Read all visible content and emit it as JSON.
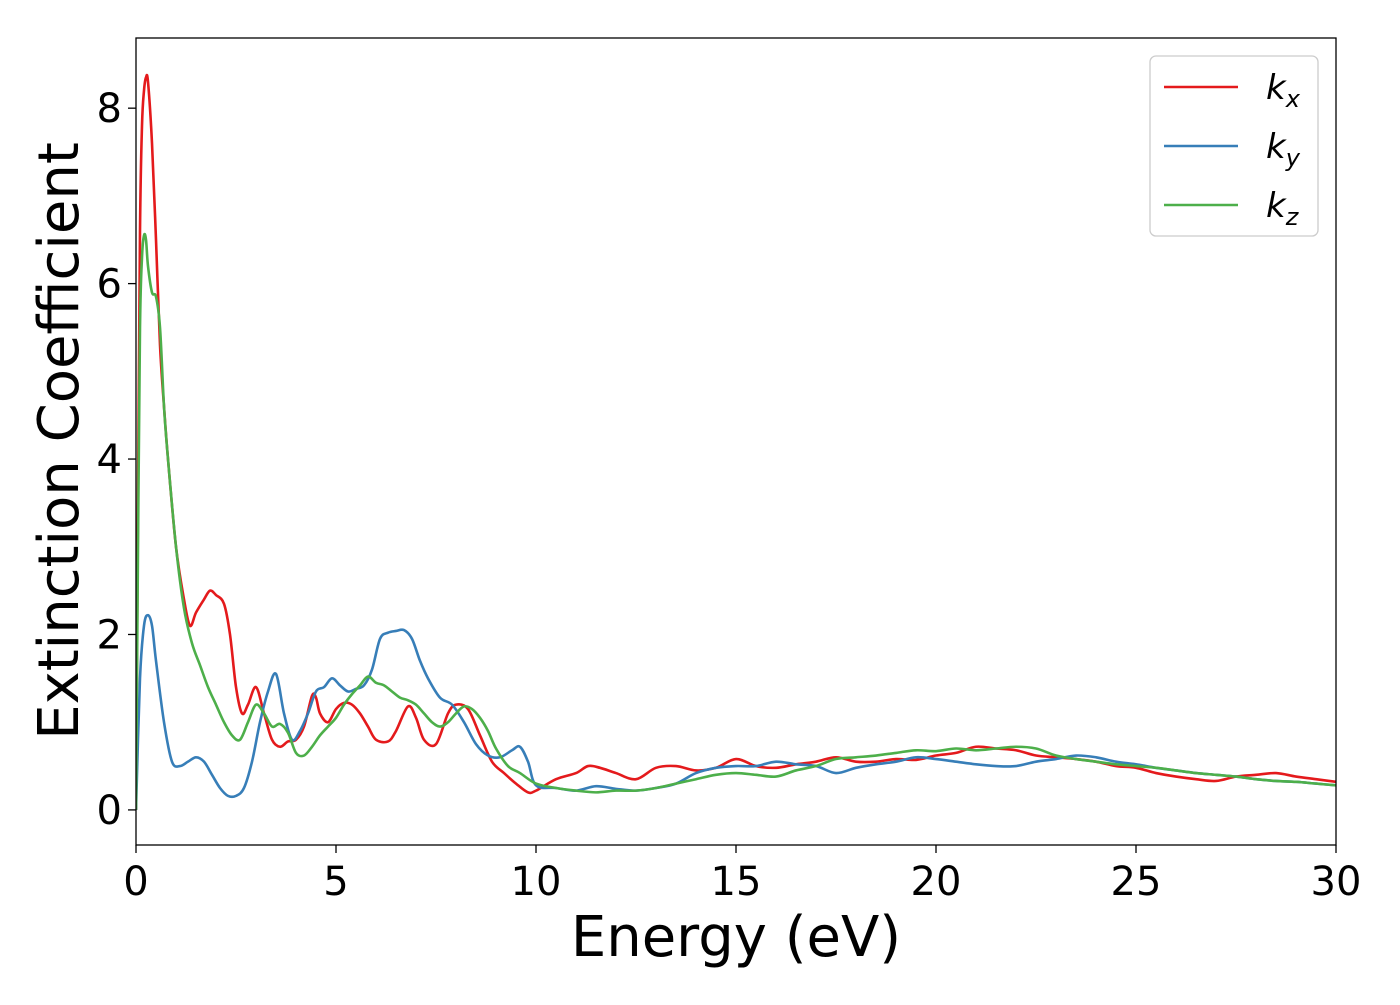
{
  "chart_data": {
    "type": "line",
    "title": "",
    "xlabel": "Energy (eV)",
    "ylabel": "Extinction Coefficient",
    "xlim": [
      0,
      30
    ],
    "ylim": [
      -0.4,
      8.8
    ],
    "xticks": [
      "0",
      "5",
      "10",
      "15",
      "20",
      "25",
      "30"
    ],
    "yticks": [
      "0",
      "2",
      "4",
      "6",
      "8"
    ],
    "grid": false,
    "legend_position": "top-right",
    "series": [
      {
        "name": "k",
        "subscript": "x",
        "color": "#e41a1c",
        "x": [
          0,
          0.05,
          0.1,
          0.15,
          0.2,
          0.25,
          0.3,
          0.4,
          0.5,
          0.6,
          0.7,
          0.8,
          1.0,
          1.2,
          1.35,
          1.5,
          1.7,
          1.85,
          2.0,
          2.2,
          2.35,
          2.5,
          2.65,
          2.8,
          3.0,
          3.2,
          3.4,
          3.6,
          3.8,
          4.0,
          4.2,
          4.4,
          4.5,
          4.6,
          4.8,
          5.0,
          5.2,
          5.4,
          5.6,
          5.8,
          6.0,
          6.3,
          6.5,
          6.8,
          7.0,
          7.2,
          7.5,
          7.8,
          8.0,
          8.3,
          8.6,
          8.9,
          9.2,
          9.5,
          9.8,
          10.0,
          10.5,
          11.0,
          11.3,
          11.6,
          12.0,
          12.5,
          13.0,
          13.5,
          14.0,
          14.5,
          15.0,
          15.5,
          16.0,
          16.5,
          17.0,
          17.5,
          18.0,
          18.5,
          19.0,
          19.5,
          20.0,
          20.5,
          21.0,
          21.5,
          22.0,
          22.5,
          23.0,
          23.5,
          24.0,
          24.5,
          25.0,
          25.5,
          26.0,
          26.5,
          27.0,
          27.5,
          28.0,
          28.5,
          29.0,
          29.5,
          30.0
        ],
        "y": [
          0.0,
          3.5,
          6.6,
          7.8,
          8.2,
          8.35,
          8.3,
          7.6,
          6.5,
          5.3,
          4.6,
          4.0,
          3.0,
          2.4,
          2.1,
          2.25,
          2.4,
          2.5,
          2.45,
          2.35,
          2.0,
          1.4,
          1.1,
          1.2,
          1.4,
          1.1,
          0.8,
          0.72,
          0.78,
          0.8,
          0.95,
          1.3,
          1.28,
          1.1,
          1.0,
          1.15,
          1.22,
          1.2,
          1.1,
          0.95,
          0.8,
          0.78,
          0.9,
          1.18,
          1.05,
          0.8,
          0.75,
          1.1,
          1.2,
          1.15,
          0.85,
          0.55,
          0.42,
          0.3,
          0.2,
          0.22,
          0.35,
          0.42,
          0.5,
          0.48,
          0.42,
          0.35,
          0.48,
          0.5,
          0.45,
          0.48,
          0.58,
          0.5,
          0.48,
          0.52,
          0.55,
          0.6,
          0.55,
          0.55,
          0.58,
          0.57,
          0.62,
          0.65,
          0.72,
          0.7,
          0.68,
          0.62,
          0.6,
          0.58,
          0.55,
          0.5,
          0.48,
          0.42,
          0.38,
          0.35,
          0.33,
          0.38,
          0.4,
          0.42,
          0.38,
          0.35,
          0.32
        ]
      },
      {
        "name": "k",
        "subscript": "y",
        "color": "#377eb8",
        "x": [
          0,
          0.1,
          0.2,
          0.3,
          0.4,
          0.5,
          0.7,
          0.9,
          1.1,
          1.3,
          1.5,
          1.7,
          1.9,
          2.1,
          2.3,
          2.5,
          2.7,
          2.9,
          3.1,
          3.3,
          3.5,
          3.7,
          3.9,
          4.1,
          4.3,
          4.5,
          4.7,
          4.9,
          5.1,
          5.3,
          5.5,
          5.7,
          5.9,
          6.1,
          6.3,
          6.5,
          6.7,
          6.9,
          7.1,
          7.3,
          7.6,
          7.9,
          8.2,
          8.5,
          8.8,
          9.1,
          9.4,
          9.6,
          9.8,
          10.0,
          10.5,
          11.0,
          11.5,
          12.0,
          12.5,
          13.0,
          13.5,
          14.0,
          14.5,
          15.0,
          15.5,
          16.0,
          16.5,
          17.0,
          17.5,
          18.0,
          18.5,
          19.0,
          19.5,
          20.0,
          20.5,
          21.0,
          21.5,
          22.0,
          22.5,
          23.0,
          23.5,
          24.0,
          24.5,
          25.0,
          25.5,
          26.0,
          26.5,
          27.0,
          27.5,
          28.0,
          28.5,
          29.0,
          29.5,
          30.0
        ],
        "y": [
          0.0,
          1.5,
          2.1,
          2.22,
          2.1,
          1.7,
          1.0,
          0.55,
          0.5,
          0.55,
          0.6,
          0.55,
          0.4,
          0.25,
          0.16,
          0.16,
          0.25,
          0.55,
          1.0,
          1.35,
          1.55,
          1.1,
          0.8,
          0.9,
          1.1,
          1.35,
          1.4,
          1.5,
          1.42,
          1.35,
          1.38,
          1.42,
          1.6,
          1.95,
          2.02,
          2.04,
          2.05,
          1.95,
          1.7,
          1.5,
          1.28,
          1.2,
          1.0,
          0.75,
          0.62,
          0.6,
          0.68,
          0.72,
          0.55,
          0.28,
          0.25,
          0.22,
          0.27,
          0.24,
          0.22,
          0.25,
          0.3,
          0.42,
          0.48,
          0.5,
          0.5,
          0.55,
          0.52,
          0.5,
          0.42,
          0.48,
          0.52,
          0.55,
          0.6,
          0.58,
          0.55,
          0.52,
          0.5,
          0.5,
          0.55,
          0.58,
          0.62,
          0.6,
          0.55,
          0.52,
          0.48,
          0.45,
          0.42,
          0.4,
          0.38,
          0.35,
          0.33,
          0.32,
          0.3,
          0.28
        ]
      },
      {
        "name": "k",
        "subscript": "z",
        "color": "#4daf4a",
        "x": [
          0,
          0.05,
          0.1,
          0.15,
          0.2,
          0.25,
          0.3,
          0.4,
          0.5,
          0.6,
          0.7,
          0.8,
          1.0,
          1.2,
          1.4,
          1.6,
          1.8,
          2.0,
          2.2,
          2.4,
          2.6,
          2.8,
          3.0,
          3.2,
          3.4,
          3.6,
          3.8,
          4.0,
          4.2,
          4.4,
          4.6,
          4.8,
          5.0,
          5.2,
          5.4,
          5.6,
          5.8,
          6.0,
          6.2,
          6.4,
          6.6,
          6.8,
          7.0,
          7.2,
          7.4,
          7.6,
          7.8,
          8.0,
          8.2,
          8.4,
          8.6,
          8.8,
          9.0,
          9.3,
          9.6,
          10.0,
          10.5,
          11.0,
          11.5,
          12.0,
          12.5,
          13.0,
          13.5,
          14.0,
          14.5,
          15.0,
          15.5,
          16.0,
          16.5,
          17.0,
          17.5,
          18.0,
          18.5,
          19.0,
          19.5,
          20.0,
          20.5,
          21.0,
          21.5,
          22.0,
          22.5,
          23.0,
          23.5,
          24.0,
          24.5,
          25.0,
          25.5,
          26.0,
          26.5,
          27.0,
          27.5,
          28.0,
          28.5,
          29.0,
          29.5,
          30.0
        ],
        "y": [
          0.0,
          3.0,
          5.5,
          6.3,
          6.55,
          6.5,
          6.2,
          5.9,
          5.85,
          5.5,
          4.6,
          4.0,
          3.0,
          2.3,
          1.9,
          1.65,
          1.4,
          1.2,
          1.0,
          0.85,
          0.8,
          1.0,
          1.2,
          1.1,
          0.95,
          0.98,
          0.88,
          0.65,
          0.62,
          0.72,
          0.85,
          0.95,
          1.05,
          1.2,
          1.32,
          1.42,
          1.52,
          1.45,
          1.42,
          1.35,
          1.28,
          1.25,
          1.2,
          1.1,
          1.0,
          0.95,
          1.0,
          1.1,
          1.18,
          1.15,
          1.05,
          0.9,
          0.7,
          0.5,
          0.42,
          0.3,
          0.25,
          0.22,
          0.2,
          0.22,
          0.22,
          0.25,
          0.3,
          0.35,
          0.4,
          0.42,
          0.4,
          0.38,
          0.45,
          0.5,
          0.58,
          0.6,
          0.62,
          0.65,
          0.68,
          0.67,
          0.7,
          0.68,
          0.7,
          0.72,
          0.7,
          0.62,
          0.58,
          0.55,
          0.52,
          0.5,
          0.48,
          0.45,
          0.42,
          0.4,
          0.38,
          0.35,
          0.33,
          0.32,
          0.3,
          0.28
        ]
      }
    ]
  }
}
